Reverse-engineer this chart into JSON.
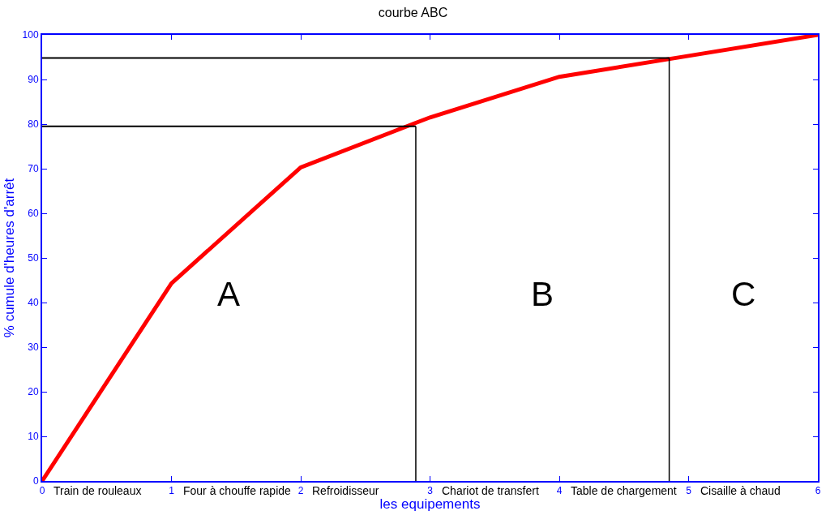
{
  "chart_data": {
    "type": "line",
    "title": "courbe ABC",
    "xlabel": "les equipements",
    "ylabel": "% cumule d'heures d'arrêt",
    "x": [
      0,
      1,
      2,
      3,
      4,
      5,
      6
    ],
    "series": [
      {
        "color": "#ff0000",
        "values": [
          0,
          44.3,
          70.3,
          81.5,
          90.6,
          95.3,
          100
        ]
      }
    ],
    "xlim": [
      0,
      6
    ],
    "xticks": [
      0,
      1,
      2,
      3,
      4,
      5,
      6
    ],
    "ylim": [
      0,
      100
    ],
    "yticks": [
      0,
      10,
      20,
      30,
      40,
      50,
      60,
      70,
      80,
      90,
      100
    ],
    "marker": "none",
    "line_style": "solid",
    "ref_lines": [
      {
        "axis": "y",
        "value": 79.5,
        "color": "#000000"
      },
      {
        "axis": "x",
        "value": 2.89,
        "color": "#000000"
      },
      {
        "axis": "y",
        "value": 94.8,
        "color": "#000000"
      },
      {
        "axis": "x",
        "value": 4.85,
        "color": "#000000"
      }
    ],
    "annotations": [
      "Train de rouleaux",
      "Four à chouffe rapide",
      "Refroidisseur",
      "Chariot de transfert",
      "Table de chargement",
      "Cisaille à chaud",
      "A",
      "B",
      "C"
    ]
  }
}
